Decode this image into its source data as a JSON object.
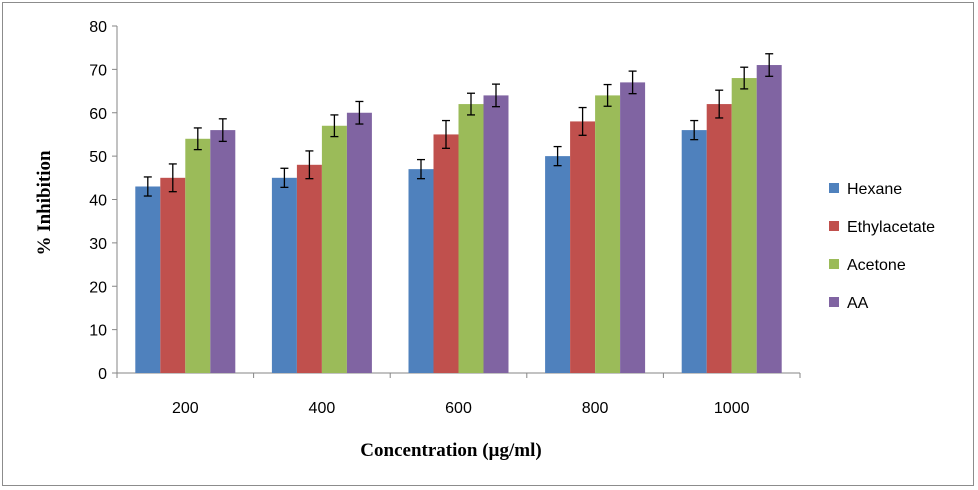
{
  "chart_data": {
    "type": "bar",
    "title": "",
    "xlabel": "Concentration (µg/ml)",
    "ylabel": "% Inhibition",
    "ylim": [
      0,
      80
    ],
    "yticks": [
      0,
      10,
      20,
      30,
      40,
      50,
      60,
      70,
      80
    ],
    "categories": [
      "200",
      "400",
      "600",
      "800",
      "1000"
    ],
    "grid": false,
    "legend_position": "right",
    "series": [
      {
        "name": "Hexane",
        "color": "#4f81bd",
        "values": [
          43,
          45,
          47,
          50,
          56
        ],
        "errors": [
          2.2,
          2.2,
          2.2,
          2.2,
          2.2
        ]
      },
      {
        "name": "Ethylacetate",
        "color": "#c0504d",
        "values": [
          45,
          48,
          55,
          58,
          62
        ],
        "errors": [
          3.2,
          3.2,
          3.2,
          3.2,
          3.2
        ]
      },
      {
        "name": "Acetone",
        "color": "#9bbb59",
        "values": [
          54,
          57,
          62,
          64,
          68
        ],
        "errors": [
          2.5,
          2.5,
          2.5,
          2.5,
          2.5
        ]
      },
      {
        "name": "AA",
        "color": "#8064a2",
        "values": [
          56,
          60,
          64,
          67,
          71
        ],
        "errors": [
          2.6,
          2.6,
          2.6,
          2.6,
          2.6
        ]
      }
    ]
  }
}
